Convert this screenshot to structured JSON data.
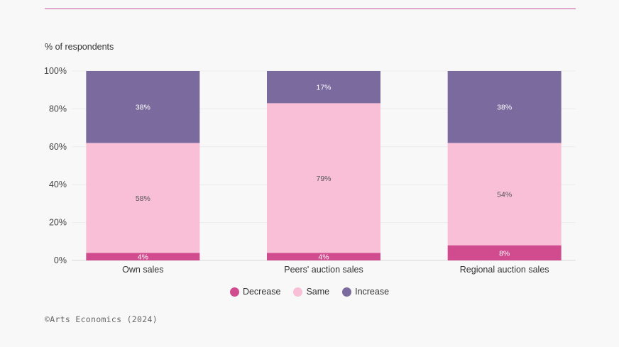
{
  "chart_data": {
    "type": "bar",
    "stacked": true,
    "ylabel": "% of respondents",
    "ylim": [
      0,
      100
    ],
    "yticks": [
      0,
      20,
      40,
      60,
      80,
      100
    ],
    "ytick_labels": [
      "0%",
      "20%",
      "40%",
      "60%",
      "80%",
      "100%"
    ],
    "categories": [
      "Own sales",
      "Peers' auction sales",
      "Regional auction sales"
    ],
    "series": [
      {
        "name": "Decrease",
        "color": "#d14b8f",
        "values": [
          4,
          4,
          8
        ],
        "labels": [
          "4%",
          "4%",
          "8%"
        ]
      },
      {
        "name": "Same",
        "color": "#f8bfd6",
        "values": [
          58,
          79,
          54
        ],
        "labels": [
          "58%",
          "79%",
          "54%"
        ]
      },
      {
        "name": "Increase",
        "color": "#7b6a9e",
        "values": [
          38,
          17,
          38
        ],
        "labels": [
          "38%",
          "17%",
          "38%"
        ]
      }
    ],
    "grid": true,
    "legend_position": "bottom"
  },
  "source": "©Arts Economics (2024)"
}
